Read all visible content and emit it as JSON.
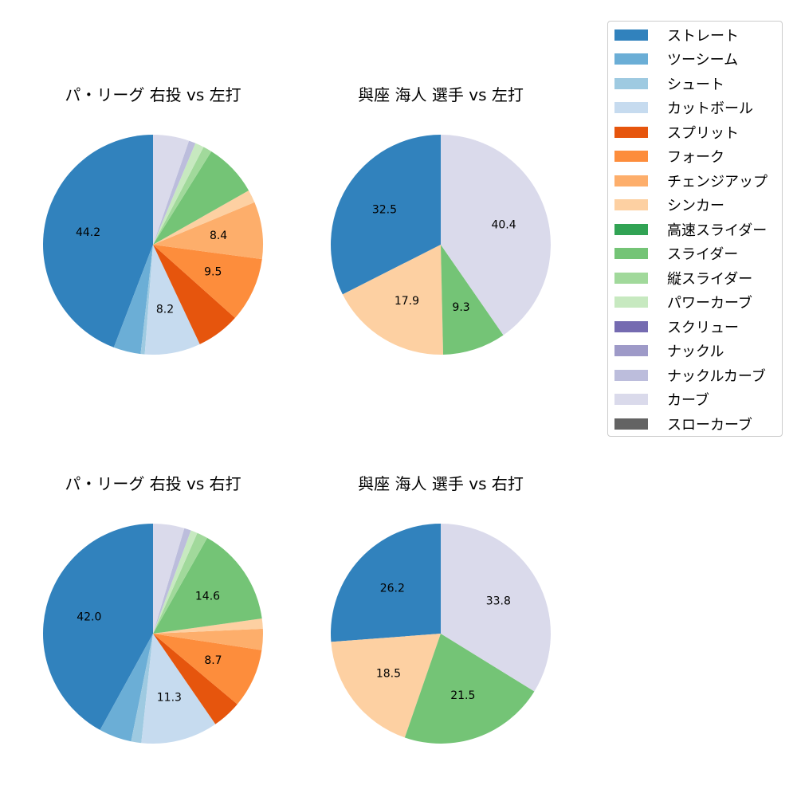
{
  "legend": {
    "items": [
      {
        "label": "ストレート",
        "color": "#3182bd"
      },
      {
        "label": "ツーシーム",
        "color": "#6baed6"
      },
      {
        "label": "シュート",
        "color": "#9ecae1"
      },
      {
        "label": "カットボール",
        "color": "#c6dbef"
      },
      {
        "label": "スプリット",
        "color": "#e6550d"
      },
      {
        "label": "フォーク",
        "color": "#fd8d3c"
      },
      {
        "label": "チェンジアップ",
        "color": "#fdae6b"
      },
      {
        "label": "シンカー",
        "color": "#fdd0a2"
      },
      {
        "label": "高速スライダー",
        "color": "#31a354"
      },
      {
        "label": "スライダー",
        "color": "#74c476"
      },
      {
        "label": "縦スライダー",
        "color": "#a1d99b"
      },
      {
        "label": "パワーカーブ",
        "color": "#c7e9c0"
      },
      {
        "label": "スクリュー",
        "color": "#756bb1"
      },
      {
        "label": "ナックル",
        "color": "#9e9ac8"
      },
      {
        "label": "ナックルカーブ",
        "color": "#bcbddc"
      },
      {
        "label": "カーブ",
        "color": "#dadaeb"
      },
      {
        "label": "スローカーブ",
        "color": "#636363"
      }
    ]
  },
  "chart_data": [
    {
      "type": "pie",
      "title": "パ・リーグ 右投 vs 左打",
      "start_angle": 90,
      "direction": "counterclockwise",
      "slices": [
        {
          "label": "ストレート",
          "value": 44.2,
          "shown": "44.2"
        },
        {
          "label": "ツーシーム",
          "value": 4.0
        },
        {
          "label": "シュート",
          "value": 0.6
        },
        {
          "label": "カットボール",
          "value": 8.2,
          "shown": "8.2"
        },
        {
          "label": "スプリット",
          "value": 6.4
        },
        {
          "label": "フォーク",
          "value": 9.5,
          "shown": "9.5"
        },
        {
          "label": "チェンジアップ",
          "value": 8.4,
          "shown": "8.4"
        },
        {
          "label": "シンカー",
          "value": 1.9
        },
        {
          "label": "スライダー",
          "value": 7.9
        },
        {
          "label": "縦スライダー",
          "value": 1.3
        },
        {
          "label": "パワーカーブ",
          "value": 1.3
        },
        {
          "label": "ナックルカーブ",
          "value": 1.0
        },
        {
          "label": "カーブ",
          "value": 5.3
        }
      ]
    },
    {
      "type": "pie",
      "title": "與座 海人 選手 vs 左打",
      "start_angle": 90,
      "direction": "counterclockwise",
      "slices": [
        {
          "label": "ストレート",
          "value": 32.5,
          "shown": "32.5"
        },
        {
          "label": "シンカー",
          "value": 17.9,
          "shown": "17.9"
        },
        {
          "label": "スライダー",
          "value": 9.3,
          "shown": "9.3"
        },
        {
          "label": "カーブ",
          "value": 40.4,
          "shown": "40.4"
        }
      ]
    },
    {
      "type": "pie",
      "title": "パ・リーグ 右投 vs 右打",
      "start_angle": 90,
      "direction": "counterclockwise",
      "slices": [
        {
          "label": "ストレート",
          "value": 42.0,
          "shown": "42.0"
        },
        {
          "label": "ツーシーム",
          "value": 4.8
        },
        {
          "label": "シュート",
          "value": 1.5
        },
        {
          "label": "カットボール",
          "value": 11.3,
          "shown": "11.3"
        },
        {
          "label": "スプリット",
          "value": 4.3
        },
        {
          "label": "フォーク",
          "value": 8.7,
          "shown": "8.7"
        },
        {
          "label": "チェンジアップ",
          "value": 3.1
        },
        {
          "label": "シンカー",
          "value": 1.5
        },
        {
          "label": "スライダー",
          "value": 14.6,
          "shown": "14.6"
        },
        {
          "label": "縦スライダー",
          "value": 1.6
        },
        {
          "label": "パワーカーブ",
          "value": 1.0
        },
        {
          "label": "ナックルカーブ",
          "value": 1.0
        },
        {
          "label": "カーブ",
          "value": 4.6
        }
      ]
    },
    {
      "type": "pie",
      "title": "與座 海人 選手 vs 右打",
      "start_angle": 90,
      "direction": "counterclockwise",
      "slices": [
        {
          "label": "ストレート",
          "value": 26.2,
          "shown": "26.2"
        },
        {
          "label": "シンカー",
          "value": 18.5,
          "shown": "18.5"
        },
        {
          "label": "スライダー",
          "value": 21.5,
          "shown": "21.5"
        },
        {
          "label": "カーブ",
          "value": 33.8,
          "shown": "33.8"
        }
      ]
    }
  ]
}
